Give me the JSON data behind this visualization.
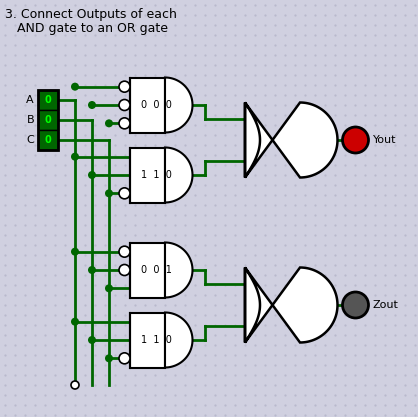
{
  "title_line1": "3. Connect Outputs of each",
  "title_line2": "   AND gate to an OR gate",
  "bg_color": "#d0d0e0",
  "dot_color": "#b8b8cc",
  "wire_color": "#006600",
  "gate_edge": "#000000",
  "gate_face": "#ffffff",
  "input_fill": "#006600",
  "input_text": "#00ff00",
  "and_labels": [
    "0  0  0",
    "1  1  0",
    "0  0  1",
    "1  1  0"
  ],
  "yout_color": "#cc0000",
  "zout_color": "#555555",
  "title_fs": 9,
  "label_fs": 8,
  "io_fs": 8
}
